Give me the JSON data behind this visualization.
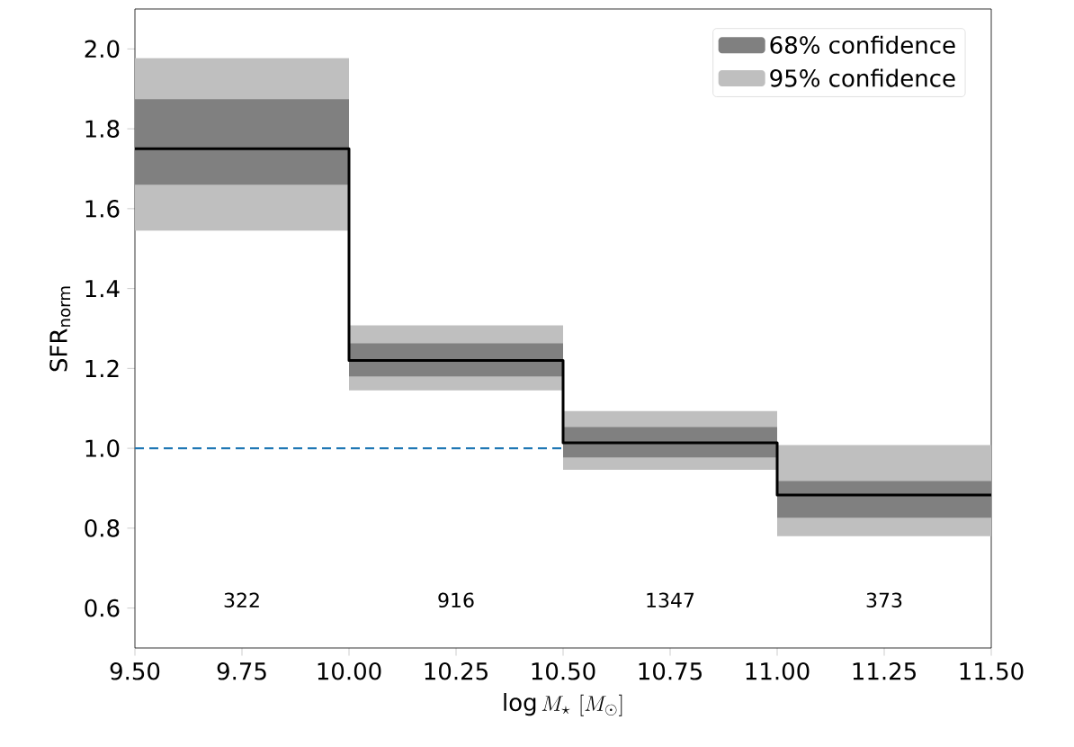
{
  "chart_data": {
    "type": "step",
    "xlabel": "\\log M_{\\star}\\ [M_{\\odot}]",
    "ylabel": "SFR$_{norm}$",
    "x": [
      9.5,
      10.0,
      10.5,
      11.0,
      11.5
    ],
    "series": [
      {
        "name": "95% confidence",
        "type": "bar",
        "color": "#bfbfbf",
        "x": [
          9.75,
          10.25,
          10.75,
          11.25
        ],
        "base": [
          1.545,
          1.145,
          0.946,
          0.78
        ],
        "values": [
          0.432,
          0.163,
          0.147,
          0.228
        ]
      },
      {
        "name": "68% confidence",
        "type": "bar",
        "color": "#808080",
        "x": [
          9.75,
          10.25,
          10.75,
          11.25
        ],
        "base": [
          1.66,
          1.18,
          0.977,
          0.826
        ],
        "values": [
          0.214,
          0.083,
          0.076,
          0.092
        ]
      },
      {
        "color": "#000000",
        "values": [
          1.75,
          1.22,
          1.014,
          0.883,
          0.883
        ]
      }
    ],
    "ref_lines": [
      {
        "axis": "y",
        "value": 1.0,
        "color": "#1f77b4",
        "line_style": "dashed"
      }
    ],
    "annotations": [
      "322",
      "916",
      "1347",
      "373"
    ],
    "xlim": [
      9.5,
      11.5
    ],
    "ylim": [
      0.5,
      2.1
    ],
    "xticks": [
      {
        "value": 9.5,
        "label": "9.50"
      },
      {
        "value": 9.75,
        "label": "9.75"
      },
      {
        "value": 10.0,
        "label": "10.00"
      },
      {
        "value": 10.25,
        "label": "10.25"
      },
      {
        "value": 10.5,
        "label": "10.50"
      },
      {
        "value": 10.75,
        "label": "10.75"
      },
      {
        "value": 11.0,
        "label": "11.00"
      },
      {
        "value": 11.25,
        "label": "11.25"
      },
      {
        "value": 11.5,
        "label": "11.50"
      }
    ],
    "yticks": [
      {
        "value": 0.6,
        "label": "0.6"
      },
      {
        "value": 0.8,
        "label": "0.8"
      },
      {
        "value": 1.0,
        "label": "1.0"
      },
      {
        "value": 1.2,
        "label": "1.2"
      },
      {
        "value": 1.4,
        "label": "1.4"
      },
      {
        "value": 1.6,
        "label": "1.6"
      },
      {
        "value": 1.8,
        "label": "1.8"
      },
      {
        "value": 2.0,
        "label": "2.0"
      }
    ],
    "grid": false,
    "legend": "top right"
  }
}
